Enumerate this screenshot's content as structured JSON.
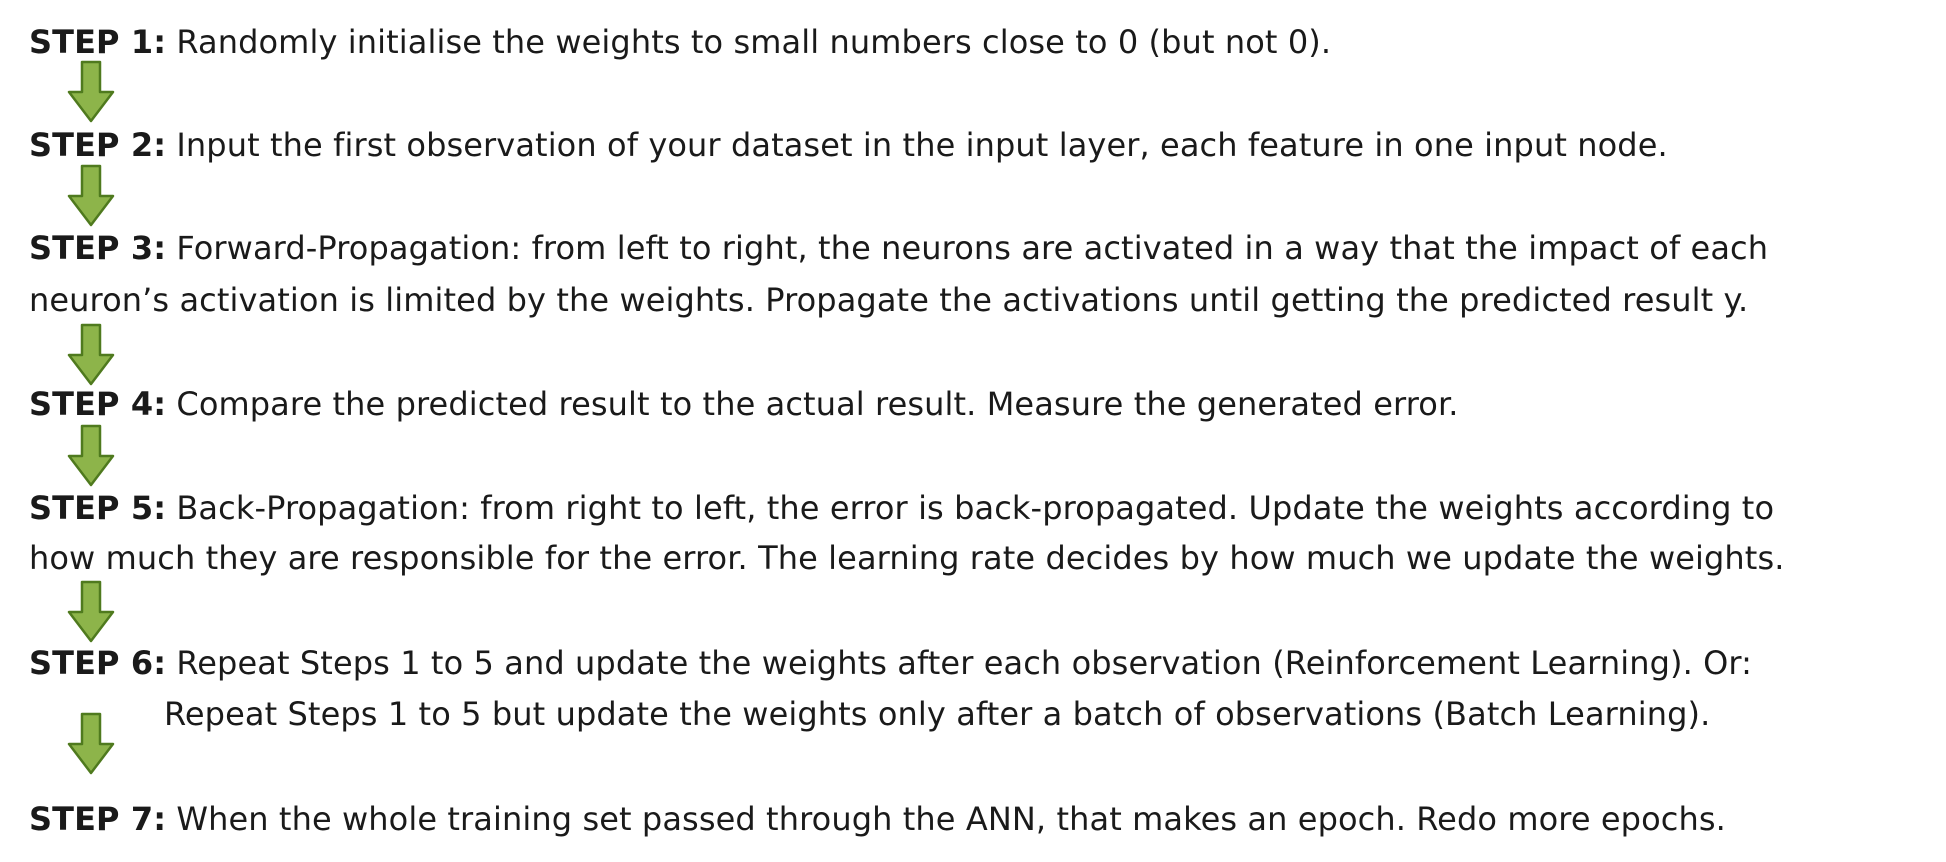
{
  "steps": [
    {
      "label": "STEP 1:",
      "lines": [
        "Randomly initialise the weights to small numbers close to 0 (but not 0)."
      ]
    },
    {
      "label": "STEP 2:",
      "lines": [
        "Input the first observation of your dataset in the input layer, each feature in one input node."
      ]
    },
    {
      "label": "STEP 3:",
      "lines": [
        "Forward-Propagation: from left to right, the neurons are activated in a way that the impact of each",
        "neuron’s activation is limited by the weights. Propagate the activations until getting the predicted result y."
      ]
    },
    {
      "label": "STEP 4:",
      "lines": [
        "Compare the predicted result to the actual result. Measure the generated error."
      ]
    },
    {
      "label": "STEP 5:",
      "lines": [
        "Back-Propagation: from right to left, the error is back-propagated. Update the weights according to",
        "how much they are responsible for the error. The learning rate decides by how much we update the weights."
      ]
    },
    {
      "label": "STEP 6:",
      "lines": [
        "Repeat Steps 1 to 5 and update the weights after each observation (Reinforcement Learning). Or:",
        "Repeat Steps 1 to 5 but update the weights only after a batch of observations (Batch Learning)."
      ]
    },
    {
      "label": "STEP 7:",
      "lines": [
        "When the whole training set passed through the ANN, that makes an epoch. Redo more epochs."
      ]
    }
  ],
  "arrow_icon": "down-arrow-icon",
  "colors": {
    "arrow_fill": "#8db44a",
    "arrow_stroke": "#4f7a1e",
    "text": "#1a1a1a"
  }
}
